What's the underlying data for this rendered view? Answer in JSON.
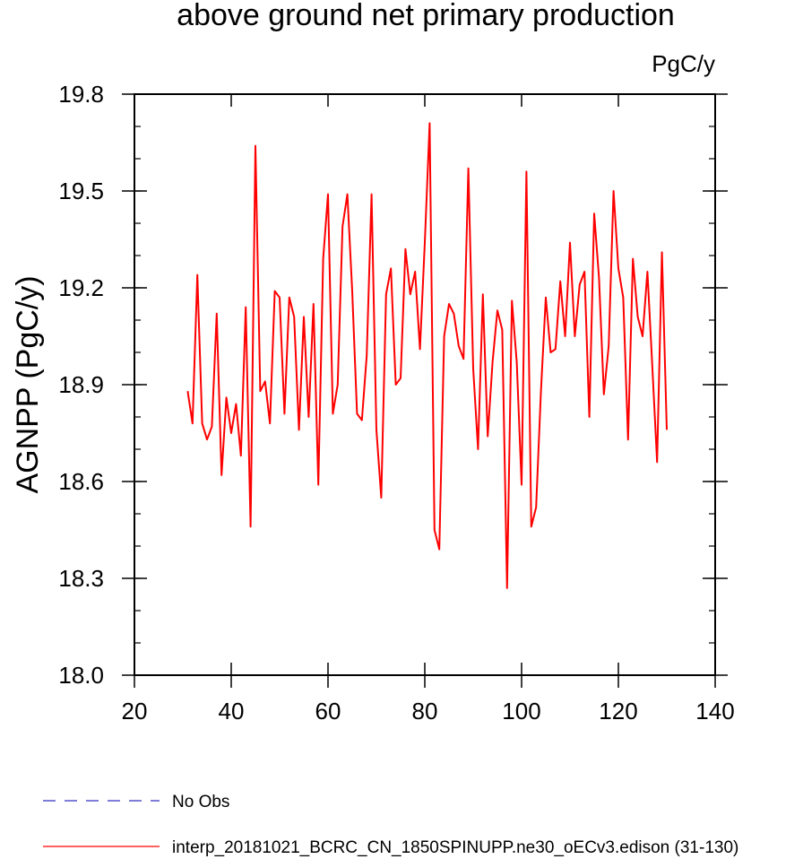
{
  "chart_data": {
    "type": "line",
    "title": "above ground net primary production",
    "units_label": "PgC/y",
    "ylabel": "AGNPP  (PgC/y)",
    "xlabel": "",
    "xlim": [
      20,
      140
    ],
    "ylim": [
      18.0,
      19.8
    ],
    "x_ticks": [
      20,
      40,
      60,
      80,
      100,
      120,
      140
    ],
    "x_tick_labels": [
      "20",
      "40",
      "60",
      "80",
      "100",
      "120",
      "140"
    ],
    "y_ticks": [
      18.0,
      18.3,
      18.6,
      18.9,
      19.2,
      19.5,
      19.8
    ],
    "y_tick_labels": [
      "18.0",
      "18.3",
      "18.6",
      "18.9",
      "19.2",
      "19.5",
      "19.8"
    ],
    "grid": false,
    "legend_position": "bottom",
    "legend": [
      {
        "label": "No Obs",
        "color": "#3030c0",
        "style": "dashed"
      },
      {
        "label": "interp_20181021_BCRC_CN_1850SPINUPP.ne30_oECv3.edison (31-130)",
        "color": "#ff0000",
        "style": "solid"
      }
    ],
    "series": [
      {
        "name": "interp_20181021_BCRC_CN_1850SPINUPP.ne30_oECv3.edison (31-130)",
        "color": "#ff0000",
        "x": [
          31,
          32,
          33,
          34,
          35,
          36,
          37,
          38,
          39,
          40,
          41,
          42,
          43,
          44,
          45,
          46,
          47,
          48,
          49,
          50,
          51,
          52,
          53,
          54,
          55,
          56,
          57,
          58,
          59,
          60,
          61,
          62,
          63,
          64,
          65,
          66,
          67,
          68,
          69,
          70,
          71,
          72,
          73,
          74,
          75,
          76,
          77,
          78,
          79,
          80,
          81,
          82,
          83,
          84,
          85,
          86,
          87,
          88,
          89,
          90,
          91,
          92,
          93,
          94,
          95,
          96,
          97,
          98,
          99,
          100,
          101,
          102,
          103,
          104,
          105,
          106,
          107,
          108,
          109,
          110,
          111,
          112,
          113,
          114,
          115,
          116,
          117,
          118,
          119,
          120,
          121,
          122,
          123,
          124,
          125,
          126,
          127,
          128,
          129,
          130
        ],
        "values": [
          18.88,
          18.78,
          19.24,
          18.78,
          18.73,
          18.77,
          19.12,
          18.62,
          18.86,
          18.75,
          18.84,
          18.68,
          19.14,
          18.46,
          19.64,
          18.88,
          18.91,
          18.78,
          19.19,
          19.17,
          18.81,
          19.17,
          19.11,
          18.76,
          19.11,
          18.8,
          19.15,
          18.59,
          19.29,
          19.49,
          18.81,
          18.9,
          19.39,
          19.49,
          19.19,
          18.81,
          18.79,
          18.99,
          19.49,
          18.76,
          18.55,
          19.18,
          19.26,
          18.9,
          18.92,
          19.32,
          19.18,
          19.25,
          19.01,
          19.34,
          19.71,
          18.45,
          18.39,
          19.05,
          19.15,
          19.12,
          19.02,
          18.98,
          19.57,
          18.95,
          18.7,
          19.18,
          18.74,
          18.97,
          19.13,
          19.07,
          18.27,
          19.16,
          18.97,
          18.59,
          19.56,
          18.46,
          18.52,
          18.88,
          19.17,
          19.0,
          19.01,
          19.22,
          19.05,
          19.34,
          19.05,
          19.21,
          19.25,
          18.8,
          19.43,
          19.23,
          18.87,
          19.02,
          19.5,
          19.26,
          19.17,
          18.73,
          19.29,
          19.11,
          19.05,
          19.25,
          18.96,
          18.66,
          19.31,
          18.76
        ]
      }
    ]
  }
}
